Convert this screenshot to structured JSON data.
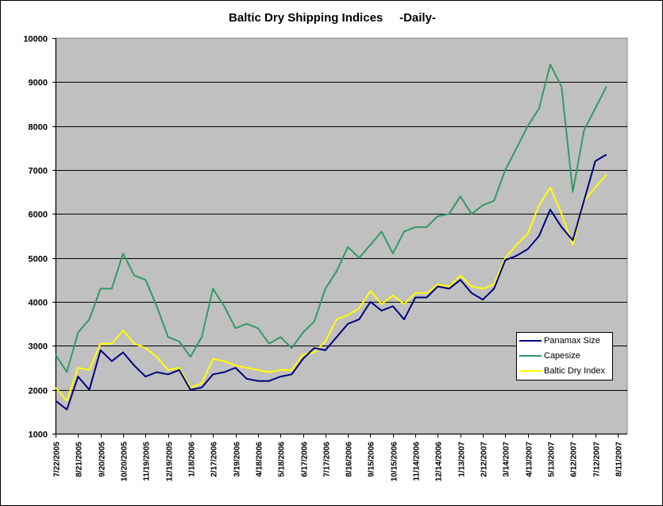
{
  "chart_data": {
    "type": "line",
    "title": "Baltic Dry Shipping Indices     -Daily-",
    "xlabel": "",
    "ylabel": "",
    "ylim": [
      1000,
      10000
    ],
    "yticks": [
      "1000",
      "2000",
      "3000",
      "4000",
      "5000",
      "6000",
      "7000",
      "8000",
      "9000",
      "10000"
    ],
    "xlim": [
      "7/22/2005",
      "8/11/2007"
    ],
    "xticks": [
      "7/22/2005",
      "8/21/2005",
      "9/20/2005",
      "10/20/2005",
      "11/19/2005",
      "12/19/2005",
      "1/18/2006",
      "2/17/2006",
      "3/19/2006",
      "4/18/2006",
      "5/18/2006",
      "6/17/2006",
      "7/17/2006",
      "8/16/2006",
      "9/15/2006",
      "10/15/2006",
      "11/14/2006",
      "12/14/2006",
      "1/13/2007",
      "2/12/2007",
      "3/14/2007",
      "4/13/2007",
      "5/13/2007",
      "6/12/2007",
      "7/12/2007",
      "8/11/2007"
    ],
    "grid": true,
    "background": "#C0C0C0",
    "legend": "lower-right",
    "x": [
      "7/22/2005",
      "8/6/2005",
      "8/21/2005",
      "9/5/2005",
      "9/20/2005",
      "10/5/2005",
      "10/20/2005",
      "11/4/2005",
      "11/19/2005",
      "12/4/2005",
      "12/19/2005",
      "1/3/2006",
      "1/18/2006",
      "2/2/2006",
      "2/17/2006",
      "3/4/2006",
      "3/19/2006",
      "4/3/2006",
      "4/18/2006",
      "5/3/2006",
      "5/18/2006",
      "6/2/2006",
      "6/17/2006",
      "7/2/2006",
      "7/17/2006",
      "8/1/2006",
      "8/16/2006",
      "8/31/2006",
      "9/15/2006",
      "9/30/2006",
      "10/15/2006",
      "10/30/2006",
      "11/14/2006",
      "11/29/2006",
      "12/14/2006",
      "12/29/2006",
      "1/13/2007",
      "1/28/2007",
      "2/12/2007",
      "2/27/2007",
      "3/14/2007",
      "3/29/2007",
      "4/13/2007",
      "4/28/2007",
      "5/13/2007",
      "5/28/2007",
      "6/12/2007",
      "6/27/2007",
      "7/12/2007",
      "7/27/2007"
    ],
    "series": [
      {
        "name": "Panamax Size",
        "color": "#000080",
        "values": [
          1750,
          1550,
          2300,
          2000,
          2900,
          2650,
          2850,
          2550,
          2300,
          2400,
          2350,
          2450,
          2000,
          2050,
          2350,
          2400,
          2500,
          2250,
          2200,
          2200,
          2300,
          2350,
          2700,
          2950,
          2900,
          3200,
          3500,
          3600,
          4000,
          3800,
          3900,
          3600,
          4100,
          4100,
          4350,
          4300,
          4500,
          4200,
          4050,
          4300,
          4950,
          5050,
          5200,
          5500,
          6100,
          5700,
          5400,
          6300,
          7200,
          7350
        ]
      },
      {
        "name": "Capesize",
        "color": "#339966",
        "values": [
          2800,
          2400,
          3300,
          3600,
          4300,
          4300,
          5100,
          4600,
          4500,
          3900,
          3200,
          3100,
          2750,
          3200,
          4300,
          3900,
          3400,
          3500,
          3400,
          3050,
          3200,
          2950,
          3300,
          3550,
          4300,
          4700,
          5250,
          5000,
          5300,
          5600,
          5100,
          5600,
          5700,
          5700,
          5950,
          6000,
          6400,
          6000,
          6200,
          6300,
          7000,
          7500,
          8000,
          8400,
          9400,
          8900,
          6500,
          7900,
          8400,
          8900
        ]
      },
      {
        "name": "Baltic Dry Index",
        "color": "#FFFF00",
        "values": [
          2050,
          1750,
          2500,
          2450,
          3050,
          3050,
          3350,
          3050,
          2950,
          2750,
          2450,
          2500,
          2050,
          2150,
          2700,
          2650,
          2550,
          2500,
          2450,
          2400,
          2450,
          2450,
          2800,
          2850,
          3100,
          3600,
          3700,
          3850,
          4250,
          3950,
          4150,
          3950,
          4200,
          4200,
          4400,
          4350,
          4600,
          4350,
          4300,
          4400,
          5000,
          5300,
          5550,
          6200,
          6600,
          6000,
          5300,
          6300,
          6600,
          6900
        ]
      }
    ]
  }
}
